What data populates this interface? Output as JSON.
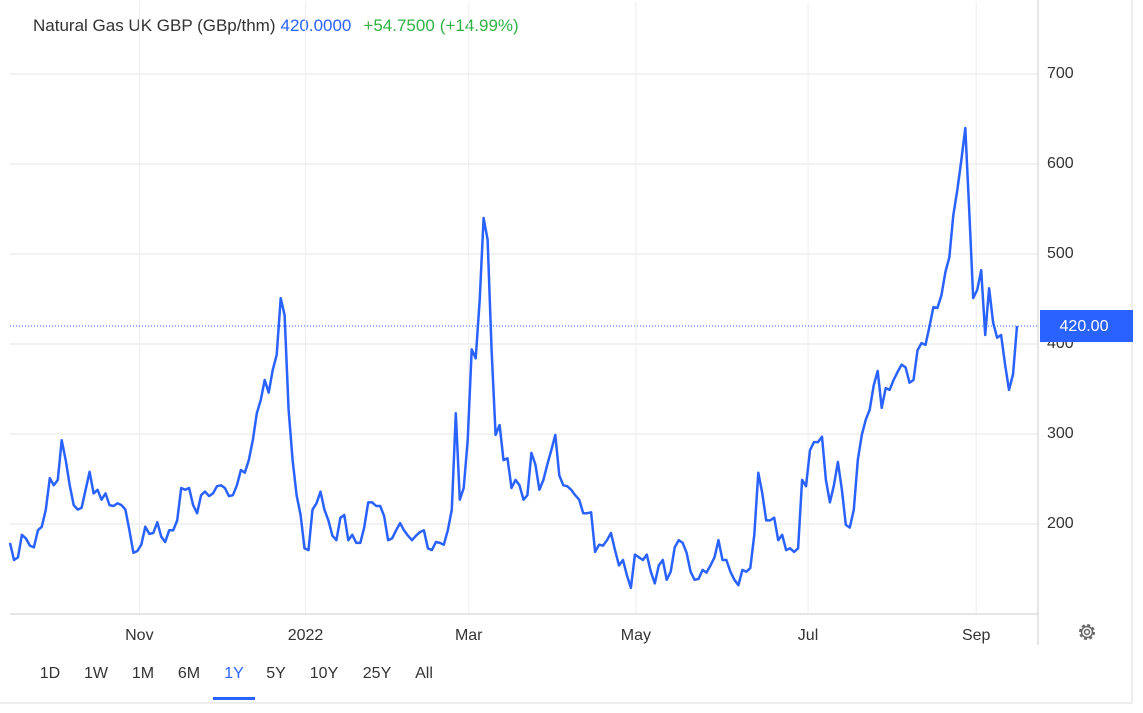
{
  "header": {
    "name": "Natural Gas UK GBP (GBp/thm)",
    "price": "420.0000",
    "change": "+54.7500",
    "change_pct": "(+14.99%)"
  },
  "chart_data": {
    "type": "line",
    "color": "#2962ff",
    "values": [
      179,
      160,
      163,
      188,
      184,
      176,
      174,
      193,
      197,
      216,
      251,
      243,
      249,
      293,
      271,
      243,
      221,
      216,
      218,
      238,
      258,
      234,
      238,
      227,
      234,
      221,
      220,
      223,
      221,
      216,
      193,
      168,
      170,
      177,
      197,
      189,
      190,
      202,
      186,
      180,
      193,
      193,
      204,
      240,
      238,
      240,
      221,
      212,
      232,
      236,
      231,
      234,
      242,
      243,
      240,
      231,
      232,
      243,
      260,
      257,
      271,
      293,
      323,
      338,
      360,
      346,
      371,
      388,
      451,
      432,
      327,
      271,
      232,
      210,
      173,
      171,
      216,
      223,
      236,
      216,
      204,
      187,
      182,
      207,
      210,
      182,
      188,
      179,
      179,
      196,
      224,
      224,
      220,
      220,
      209,
      182,
      184,
      193,
      201,
      193,
      187,
      182,
      187,
      191,
      193,
      173,
      171,
      180,
      179,
      177,
      193,
      216,
      323,
      227,
      240,
      293,
      394,
      384,
      449,
      540,
      516,
      393,
      299,
      310,
      271,
      273,
      240,
      249,
      243,
      227,
      232,
      279,
      266,
      238,
      249,
      266,
      282,
      299,
      254,
      243,
      242,
      238,
      232,
      227,
      212,
      212,
      213,
      169,
      177,
      176,
      182,
      190,
      171,
      154,
      160,
      143,
      129,
      166,
      163,
      160,
      166,
      147,
      134,
      154,
      160,
      138,
      147,
      174,
      182,
      179,
      168,
      147,
      138,
      139,
      149,
      146,
      154,
      163,
      182,
      160,
      160,
      147,
      138,
      132,
      149,
      147,
      151,
      188,
      257,
      234,
      204,
      204,
      207,
      182,
      188,
      171,
      173,
      169,
      173,
      249,
      242,
      282,
      291,
      291,
      297,
      249,
      224,
      243,
      269,
      238,
      199,
      196,
      216,
      271,
      299,
      316,
      327,
      354,
      370,
      329,
      351,
      349,
      360,
      369,
      377,
      374,
      357,
      360,
      393,
      401,
      399,
      419,
      441,
      440,
      454,
      480,
      496,
      543,
      571,
      604,
      640,
      549,
      451,
      460,
      482,
      410,
      462,
      424,
      407,
      410,
      377,
      349,
      366,
      420
    ],
    "xlim": [
      0,
      253
    ],
    "xticks": [
      {
        "value": 32.5,
        "label": "Nov"
      },
      {
        "value": 74.25,
        "label": "2022"
      },
      {
        "value": 115.25,
        "label": "Mar"
      },
      {
        "value": 157.25,
        "label": "May"
      },
      {
        "value": 200.5,
        "label": "Jul"
      },
      {
        "value": 242.75,
        "label": "Sep"
      }
    ],
    "ylim": [
      100,
      780
    ],
    "yticks": [
      200,
      300,
      400,
      500,
      600,
      700
    ],
    "grid": true,
    "last_price": {
      "value": 420,
      "label": "420.00"
    }
  },
  "ranges": [
    "1D",
    "1W",
    "1M",
    "6M",
    "1Y",
    "5Y",
    "10Y",
    "25Y",
    "All"
  ],
  "active_range": 4
}
